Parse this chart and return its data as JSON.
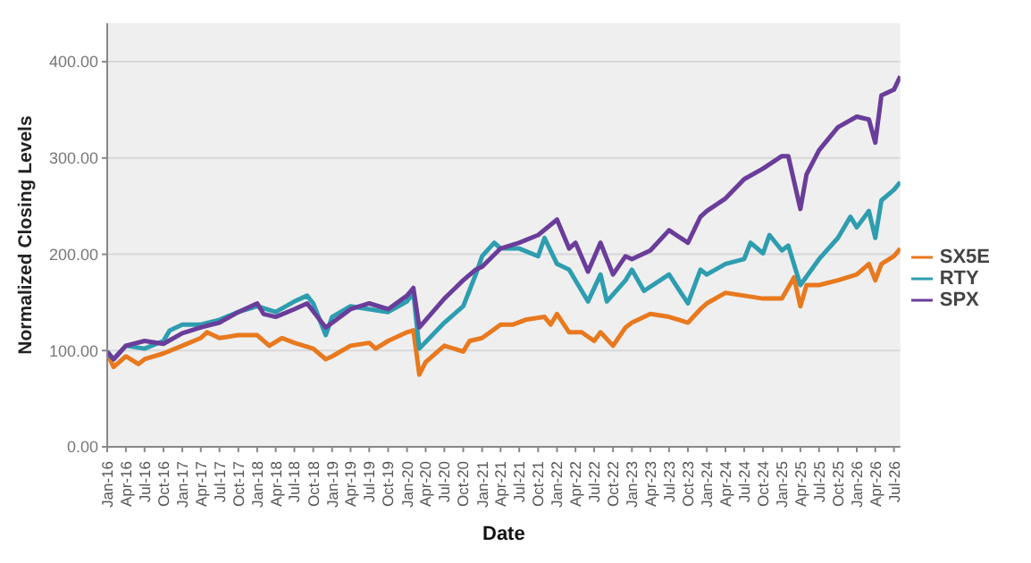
{
  "chart_data": {
    "type": "line",
    "xlabel": "Date",
    "ylabel": "Normalized Closing Levels",
    "xlim": [
      "2016-01",
      "2026-08"
    ],
    "ylim": [
      0,
      440
    ],
    "yticks": [
      {
        "value": 0,
        "label": "0.00"
      },
      {
        "value": 100,
        "label": "100.00"
      },
      {
        "value": 200,
        "label": "200.00"
      },
      {
        "value": 300,
        "label": "300.00"
      },
      {
        "value": 400,
        "label": "400.00"
      }
    ],
    "xticks": [
      {
        "value": "2016-01",
        "label": "Jan-16"
      },
      {
        "value": "2016-04",
        "label": "Apr-16"
      },
      {
        "value": "2016-07",
        "label": "Jul-16"
      },
      {
        "value": "2016-10",
        "label": "Oct-16"
      },
      {
        "value": "2017-01",
        "label": "Jan-17"
      },
      {
        "value": "2017-04",
        "label": "Apr-17"
      },
      {
        "value": "2017-07",
        "label": "Jul-17"
      },
      {
        "value": "2017-10",
        "label": "Oct-17"
      },
      {
        "value": "2018-01",
        "label": "Jan-18"
      },
      {
        "value": "2018-04",
        "label": "Apr-18"
      },
      {
        "value": "2018-07",
        "label": "Jul-18"
      },
      {
        "value": "2018-10",
        "label": "Oct-18"
      },
      {
        "value": "2019-01",
        "label": "Jan-19"
      },
      {
        "value": "2019-04",
        "label": "Apr-19"
      },
      {
        "value": "2019-07",
        "label": "Jul-19"
      },
      {
        "value": "2019-10",
        "label": "Oct-19"
      },
      {
        "value": "2020-01",
        "label": "Jan-20"
      },
      {
        "value": "2020-04",
        "label": "Apr-20"
      },
      {
        "value": "2020-07",
        "label": "Jul-20"
      },
      {
        "value": "2020-10",
        "label": "Oct-20"
      },
      {
        "value": "2021-01",
        "label": "Jan-21"
      },
      {
        "value": "2021-04",
        "label": "Apr-21"
      },
      {
        "value": "2021-07",
        "label": "Jul-21"
      },
      {
        "value": "2021-10",
        "label": "Oct-21"
      },
      {
        "value": "2022-01",
        "label": "Jan-22"
      },
      {
        "value": "2022-04",
        "label": "Apr-22"
      },
      {
        "value": "2022-07",
        "label": "Jul-22"
      },
      {
        "value": "2022-10",
        "label": "Oct-22"
      },
      {
        "value": "2023-01",
        "label": "Jan-23"
      },
      {
        "value": "2023-04",
        "label": "Apr-23"
      },
      {
        "value": "2023-07",
        "label": "Jul-23"
      },
      {
        "value": "2023-10",
        "label": "Oct-23"
      },
      {
        "value": "2024-01",
        "label": "Jan-24"
      },
      {
        "value": "2024-04",
        "label": "Apr-24"
      },
      {
        "value": "2024-07",
        "label": "Jul-24"
      },
      {
        "value": "2024-10",
        "label": "Oct-24"
      },
      {
        "value": "2025-01",
        "label": "Jan-25"
      },
      {
        "value": "2025-04",
        "label": "Apr-25"
      },
      {
        "value": "2025-07",
        "label": "Jul-25"
      },
      {
        "value": "2025-10",
        "label": "Oct-25"
      },
      {
        "value": "2026-01",
        "label": "Jan-26"
      },
      {
        "value": "2026-04",
        "label": "Apr-26"
      },
      {
        "value": "2026-07",
        "label": "Jul-26"
      }
    ],
    "grid": "y",
    "legend": "right",
    "series": [
      {
        "name": "SX5E",
        "color": "#e8791e",
        "x": [
          "2016-01",
          "2016-02",
          "2016-04",
          "2016-06",
          "2016-07",
          "2016-10",
          "2017-01",
          "2017-04",
          "2017-05",
          "2017-07",
          "2017-10",
          "2018-01",
          "2018-03",
          "2018-05",
          "2018-07",
          "2018-10",
          "2018-12",
          "2019-01",
          "2019-04",
          "2019-07",
          "2019-08",
          "2019-10",
          "2020-01",
          "2020-02",
          "2020-03",
          "2020-04",
          "2020-07",
          "2020-10",
          "2020-11",
          "2021-01",
          "2021-04",
          "2021-06",
          "2021-08",
          "2021-11",
          "2021-12",
          "2022-01",
          "2022-03",
          "2022-05",
          "2022-07",
          "2022-08",
          "2022-10",
          "2022-12",
          "2023-01",
          "2023-04",
          "2023-07",
          "2023-10",
          "2023-12",
          "2024-01",
          "2024-04",
          "2024-07",
          "2024-10",
          "2025-01",
          "2025-03",
          "2025-04",
          "2025-05",
          "2025-07",
          "2025-10",
          "2026-01",
          "2026-03",
          "2026-04",
          "2026-05",
          "2026-07",
          "2026-08"
        ],
        "values": [
          97,
          83,
          94,
          86,
          91,
          97,
          105,
          113,
          119,
          113,
          116,
          116,
          105,
          113,
          108,
          102,
          91,
          94,
          105,
          108,
          102,
          110,
          119,
          121,
          75,
          88,
          105,
          99,
          110,
          113,
          127,
          127,
          132,
          135,
          127,
          138,
          119,
          119,
          110,
          119,
          105,
          124,
          129,
          138,
          135,
          129,
          143,
          149,
          160,
          157,
          154,
          154,
          176,
          146,
          168,
          168,
          173,
          179,
          190,
          173,
          190,
          198,
          206
        ]
      },
      {
        "name": "RTY",
        "color": "#2e9db0",
        "x": [
          "2016-01",
          "2016-02",
          "2016-04",
          "2016-07",
          "2016-10",
          "2016-11",
          "2017-01",
          "2017-04",
          "2017-07",
          "2017-10",
          "2018-01",
          "2018-04",
          "2018-07",
          "2018-09",
          "2018-10",
          "2018-12",
          "2019-01",
          "2019-04",
          "2019-07",
          "2019-10",
          "2020-01",
          "2020-02",
          "2020-03",
          "2020-07",
          "2020-10",
          "2020-12",
          "2021-01",
          "2021-03",
          "2021-04",
          "2021-07",
          "2021-10",
          "2021-11",
          "2022-01",
          "2022-03",
          "2022-06",
          "2022-08",
          "2022-09",
          "2022-12",
          "2023-01",
          "2023-03",
          "2023-07",
          "2023-10",
          "2023-12",
          "2024-01",
          "2024-04",
          "2024-07",
          "2024-08",
          "2024-10",
          "2024-11",
          "2025-01",
          "2025-02",
          "2025-04",
          "2025-07",
          "2025-10",
          "2025-12",
          "2026-01",
          "2026-03",
          "2026-04",
          "2026-05",
          "2026-07",
          "2026-08"
        ],
        "values": [
          97,
          91,
          105,
          102,
          110,
          121,
          127,
          127,
          132,
          140,
          146,
          140,
          151,
          157,
          149,
          116,
          135,
          146,
          143,
          140,
          151,
          160,
          102,
          129,
          146,
          179,
          198,
          212,
          206,
          206,
          198,
          217,
          190,
          184,
          151,
          179,
          151,
          173,
          184,
          162,
          179,
          149,
          184,
          179,
          190,
          195,
          212,
          201,
          220,
          204,
          209,
          168,
          195,
          217,
          239,
          228,
          245,
          217,
          256,
          267,
          275
        ]
      },
      {
        "name": "SPX",
        "color": "#6a3d9a",
        "x": [
          "2016-01",
          "2016-02",
          "2016-04",
          "2016-07",
          "2016-10",
          "2017-01",
          "2017-04",
          "2017-07",
          "2017-10",
          "2018-01",
          "2018-02",
          "2018-04",
          "2018-07",
          "2018-09",
          "2018-12",
          "2019-04",
          "2019-07",
          "2019-10",
          "2020-01",
          "2020-02",
          "2020-03",
          "2020-07",
          "2020-10",
          "2020-12",
          "2021-01",
          "2021-04",
          "2021-07",
          "2021-10",
          "2022-01",
          "2022-03",
          "2022-04",
          "2022-06",
          "2022-08",
          "2022-10",
          "2022-12",
          "2023-01",
          "2023-04",
          "2023-07",
          "2023-10",
          "2023-12",
          "2024-01",
          "2024-04",
          "2024-07",
          "2024-10",
          "2025-01",
          "2025-02",
          "2025-04",
          "2025-05",
          "2025-07",
          "2025-10",
          "2026-01",
          "2026-03",
          "2026-04",
          "2026-05",
          "2026-07",
          "2026-08"
        ],
        "values": [
          99,
          91,
          105,
          110,
          107,
          118,
          124,
          129,
          140,
          149,
          138,
          135,
          143,
          149,
          124,
          143,
          149,
          143,
          157,
          165,
          124,
          154,
          173,
          184,
          187,
          206,
          212,
          220,
          236,
          206,
          212,
          182,
          212,
          179,
          198,
          195,
          204,
          225,
          212,
          239,
          245,
          258,
          278,
          289,
          302,
          302,
          247,
          283,
          308,
          332,
          343,
          340,
          316,
          365,
          371,
          385
        ]
      }
    ]
  }
}
